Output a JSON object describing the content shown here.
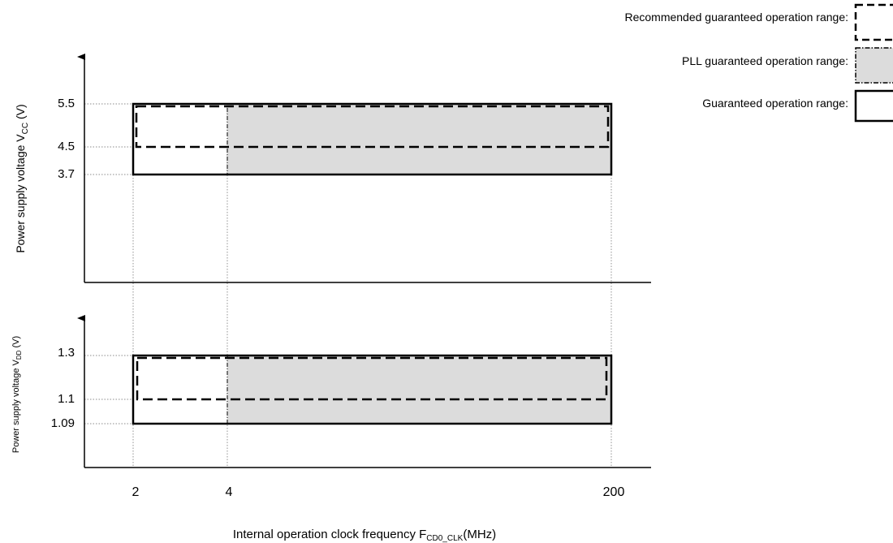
{
  "legend": [
    {
      "label": "Recommended guaranteed operation range:",
      "style": "dashed",
      "fill": "#ffffff"
    },
    {
      "label": "PLL guaranteed operation range:",
      "style": "dash-dot",
      "fill": "#dcdcdc"
    },
    {
      "label": "Guaranteed operation range:",
      "style": "solid",
      "fill": "#ffffff"
    }
  ],
  "xaxis": {
    "label_main": "Internal operation clock frequency F",
    "label_sub": "CD0_CLK",
    "label_unit": "(MHz)",
    "ticks": [
      "2",
      "4",
      "200"
    ]
  },
  "chart_data": [
    {
      "type": "area",
      "ylabel_main": "Power supply voltage V",
      "ylabel_sub": "CC",
      "ylabel_unit": " (V)",
      "y_ticks": [
        "5.5",
        "4.5",
        "3.7"
      ],
      "categories": [
        "2",
        "4",
        "200"
      ],
      "regions": [
        {
          "name": "Guaranteed operation range",
          "x_range": [
            "2",
            "200"
          ],
          "y_range": [
            3.7,
            5.5
          ],
          "style": "solid"
        },
        {
          "name": "PLL guaranteed operation range",
          "x_range": [
            "4",
            "200"
          ],
          "y_range": [
            3.7,
            5.5
          ],
          "style": "dash-dot",
          "fill": "#dcdcdc"
        },
        {
          "name": "Recommended guaranteed operation range",
          "x_range": [
            "2",
            "200"
          ],
          "y_range": [
            4.5,
            5.5
          ],
          "style": "dashed"
        }
      ]
    },
    {
      "type": "area",
      "ylabel_main": "Power supply voltage V",
      "ylabel_sub": "DD",
      "ylabel_unit": " (V)",
      "y_ticks": [
        "1.3",
        "1.1",
        "1.09"
      ],
      "categories": [
        "2",
        "4",
        "200"
      ],
      "regions": [
        {
          "name": "Guaranteed operation range",
          "x_range": [
            "2",
            "200"
          ],
          "y_range": [
            1.09,
            1.3
          ],
          "style": "solid"
        },
        {
          "name": "PLL guaranteed operation range",
          "x_range": [
            "4",
            "200"
          ],
          "y_range": [
            1.09,
            1.3
          ],
          "style": "dash-dot",
          "fill": "#dcdcdc"
        },
        {
          "name": "Recommended guaranteed operation range",
          "x_range": [
            "2",
            "200"
          ],
          "y_range": [
            1.1,
            1.3
          ],
          "style": "dashed"
        }
      ]
    }
  ]
}
